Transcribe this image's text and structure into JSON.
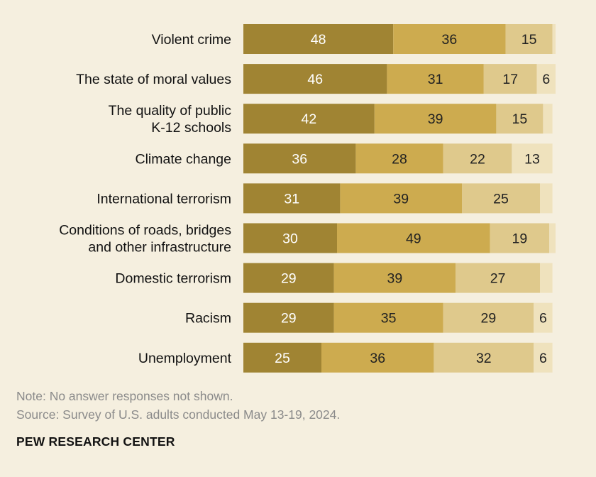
{
  "chart_data": {
    "type": "bar",
    "orientation": "horizontal",
    "stacked": true,
    "categories": [
      [
        "Violent crime"
      ],
      [
        "The state of moral values"
      ],
      [
        "The quality of public",
        "K-12 schools"
      ],
      [
        "Climate change"
      ],
      [
        "International terrorism"
      ],
      [
        "Conditions of roads, bridges",
        "and other infrastructure"
      ],
      [
        "Domestic terrorism"
      ],
      [
        "Racism"
      ],
      [
        "Unemployment"
      ]
    ],
    "series": [
      {
        "color": "#a08433",
        "values": [
          48,
          46,
          42,
          36,
          31,
          30,
          29,
          29,
          25
        ],
        "labels": [
          "48",
          "46",
          "42",
          "36",
          "31",
          "30",
          "29",
          "29",
          "25"
        ]
      },
      {
        "color": "#cdab4f",
        "values": [
          36,
          31,
          39,
          28,
          39,
          49,
          39,
          35,
          36
        ],
        "labels": [
          "36",
          "31",
          "39",
          "28",
          "39",
          "49",
          "39",
          "35",
          "36"
        ]
      },
      {
        "color": "#dfc98c",
        "values": [
          15,
          17,
          15,
          22,
          25,
          19,
          27,
          29,
          32
        ],
        "labels": [
          "15",
          "17",
          "15",
          "22",
          "25",
          "19",
          "27",
          "29",
          "32"
        ]
      },
      {
        "color": "#efe2bd",
        "values": [
          1,
          6,
          3,
          13,
          4,
          2,
          4,
          6,
          6
        ],
        "labels": [
          "",
          "6",
          "",
          "13",
          "",
          "",
          "",
          "6",
          "6"
        ]
      }
    ],
    "xlim": [
      0,
      100
    ],
    "grid": false,
    "legend": "none"
  },
  "footer": {
    "note": "Note: No answer responses not shown.",
    "source": "Source: Survey of U.S. adults conducted May 13-19, 2024.",
    "brand": "PEW RESEARCH CENTER"
  }
}
